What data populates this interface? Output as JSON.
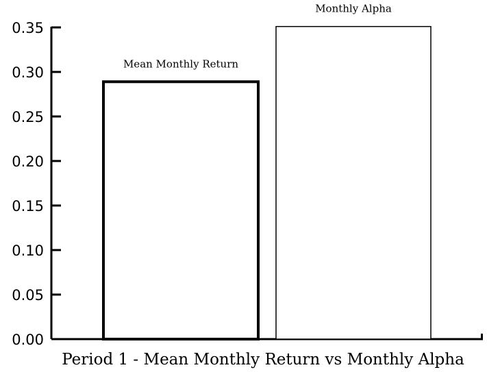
{
  "chart_data": {
    "type": "bar",
    "title": "",
    "xlabel": "Period 1 - Mean Monthly Return vs Monthly Alpha",
    "ylabel": "",
    "ylim": [
      0,
      0.35
    ],
    "yticks": [
      "0.00",
      "0.05",
      "0.10",
      "0.15",
      "0.20",
      "0.25",
      "0.30",
      "0.35"
    ],
    "categories": [
      "Mean Monthly Return",
      "Monthly Alpha"
    ],
    "values": [
      0.289,
      0.351
    ],
    "grid": false,
    "legend": "none",
    "colors": {
      "fill": "#ffffff",
      "stroke": "#000000"
    }
  }
}
